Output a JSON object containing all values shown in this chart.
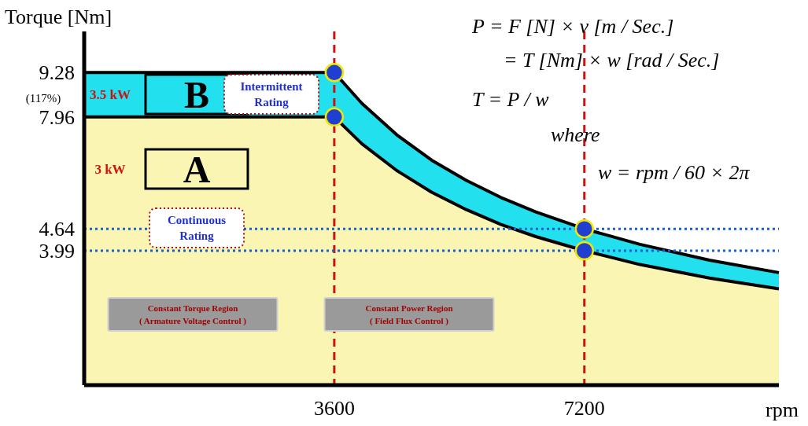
{
  "chart_data": {
    "type": "area",
    "ylabel": "Torque [Nm]",
    "xlabel": "rpm",
    "xlim": [
      0,
      10000
    ],
    "ylim": [
      0,
      10.5
    ],
    "xticks": [
      3600,
      7200
    ],
    "yticks": [
      9.28,
      7.96,
      4.64,
      3.99
    ],
    "series": [
      {
        "color": "#22e0ee",
        "x": [
          0,
          3600,
          4000,
          4500,
          5000,
          5500,
          6000,
          6500,
          7200,
          8000,
          9000,
          10000
        ],
        "values": [
          9.28,
          9.28,
          8.36,
          7.43,
          6.68,
          6.08,
          5.57,
          5.14,
          4.64,
          4.18,
          3.71,
          3.34
        ]
      },
      {
        "color": "#fbf5b4",
        "x": [
          0,
          3600,
          4000,
          4500,
          5000,
          5500,
          6000,
          6500,
          7200,
          8000,
          9000,
          10000
        ],
        "values": [
          7.96,
          7.96,
          7.16,
          6.37,
          5.73,
          5.21,
          4.77,
          4.41,
          3.99,
          3.58,
          3.18,
          2.86
        ]
      },
      {
        "type": "scatter",
        "color": "#1f3fd0",
        "x": [
          3600,
          3600,
          7200,
          7200
        ],
        "values": [
          9.28,
          7.96,
          4.64,
          3.99
        ]
      }
    ],
    "ref_lines": [
      {
        "axis": "x",
        "value": 3600,
        "color": "#cc1111",
        "line_style": "dashed"
      },
      {
        "axis": "x",
        "value": 7200,
        "color": "#cc1111",
        "line_style": "dashed"
      },
      {
        "axis": "y",
        "value": 4.64,
        "color": "#1a5fd0",
        "line_style": "dotted"
      },
      {
        "axis": "y",
        "value": 3.99,
        "color": "#1a5fd0",
        "line_style": "dotted"
      }
    ],
    "annotations": [
      "P = F [N] × v [m / Sec.]",
      "= T [Nm] × w [rad / Sec.]",
      "T = P / w",
      "where",
      "w = rpm / 60 × 2π",
      "(117%)",
      "3.5 kW",
      "B",
      "Intermittent\nRating",
      "3 kW",
      "A",
      "Continuous\nRating",
      "Constant Torque Region\n( Armature Voltage Control )",
      "Constant Power Region\n( Field Flux Control )"
    ]
  }
}
